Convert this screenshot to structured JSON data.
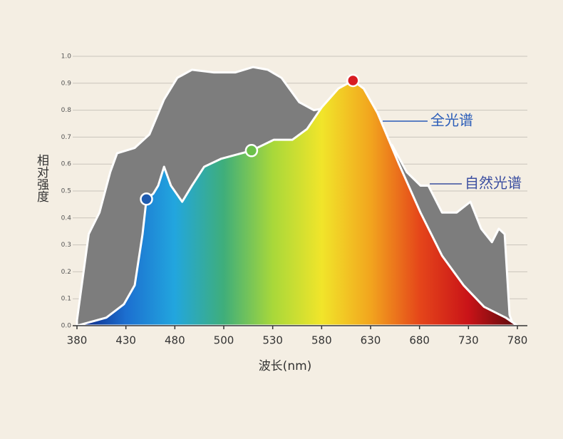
{
  "chart_data": {
    "type": "area",
    "x_label": "波长(nm)",
    "y_label": "相对强度",
    "xlim": [
      380,
      780
    ],
    "xticks": [
      380,
      430,
      480,
      500,
      530,
      580,
      630,
      680,
      730,
      780
    ],
    "ylim": [
      0,
      1
    ],
    "yticks": [
      {
        "value": 0,
        "label": "0.0"
      },
      0.1,
      0.2,
      0.3,
      0.4,
      0.5,
      0.6,
      0.7,
      0.8,
      0.9,
      {
        "value": 1,
        "label": "1.0"
      }
    ],
    "grid": true,
    "series": [
      {
        "name": "自然光谱",
        "color": "#7d7d7d",
        "label_color": "#3b4ea0",
        "x": [
          380,
          392,
          403,
          414,
          421,
          439,
          454,
          469,
          481,
          487,
          496,
          507,
          518,
          527,
          539,
          557,
          572,
          587,
          601,
          630,
          648,
          652,
          667,
          681,
          689,
          703,
          718,
          732,
          743,
          754,
          761,
          767,
          772,
          776
        ],
        "values": [
          0.02,
          0.34,
          0.42,
          0.57,
          0.64,
          0.66,
          0.71,
          0.84,
          0.92,
          0.95,
          0.94,
          0.94,
          0.96,
          0.95,
          0.92,
          0.83,
          0.8,
          0.81,
          0.78,
          0.75,
          0.68,
          0.67,
          0.57,
          0.52,
          0.52,
          0.42,
          0.42,
          0.46,
          0.36,
          0.31,
          0.36,
          0.34,
          0.04,
          0
        ]
      },
      {
        "name": "全光谱",
        "colors": [
          "#0b1f7e",
          "#1c6fd0",
          "#22a6de",
          "#3fae7a",
          "#a8d83a",
          "#f1e52a",
          "#f2a51e",
          "#e5461a",
          "#c91318",
          "#5a0a0c"
        ],
        "label_color": "#2a5cb8",
        "x": [
          380,
          410,
          428,
          439,
          447,
          451,
          458,
          463,
          469,
          476,
          483,
          487,
          492,
          499,
          517,
          531,
          550,
          565,
          580,
          597,
          612,
          623,
          637,
          659,
          681,
          703,
          725,
          746,
          768,
          780
        ],
        "values": [
          0,
          0.03,
          0.08,
          0.15,
          0.34,
          0.47,
          0.49,
          0.52,
          0.59,
          0.52,
          0.46,
          0.52,
          0.59,
          0.62,
          0.65,
          0.69,
          0.69,
          0.73,
          0.81,
          0.88,
          0.91,
          0.88,
          0.79,
          0.6,
          0.42,
          0.26,
          0.15,
          0.07,
          0.03,
          0
        ]
      }
    ],
    "markers": [
      {
        "x": 451,
        "y": 0.47,
        "color": "#1f5cb0"
      },
      {
        "x": 517,
        "y": 0.65,
        "color": "#6cc04a"
      },
      {
        "x": 612,
        "y": 0.91,
        "color": "#d81c22"
      }
    ]
  }
}
